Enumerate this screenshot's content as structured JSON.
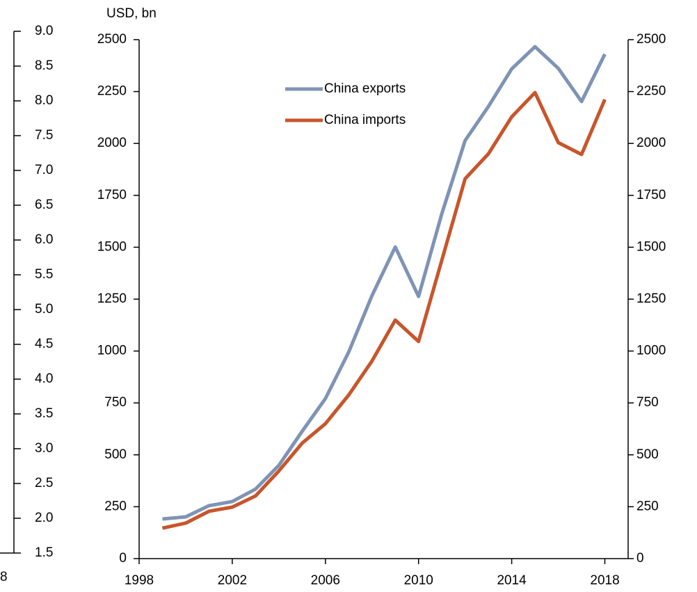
{
  "chart_data": [
    {
      "type": "line",
      "y_label": "USD, bn",
      "x": [
        1999,
        2000,
        2001,
        2002,
        2003,
        2004,
        2005,
        2006,
        2007,
        2008,
        2009,
        2010,
        2011,
        2012,
        2013,
        2014,
        2015,
        2016,
        2017,
        2018
      ],
      "series": [
        {
          "name": "China exports",
          "color": "#7f93b5",
          "values": [
            191,
            201,
            255,
            275,
            335,
            449,
            613,
            771,
            995,
            1267,
            1501,
            1263,
            1662,
            2014,
            2178,
            2359,
            2466,
            2362,
            2202,
            2430
          ]
        },
        {
          "name": "China imports",
          "color": "#c8552b",
          "values": [
            147,
            171,
            228,
            248,
            302,
            422,
            556,
            650,
            788,
            952,
            1149,
            1046,
            1438,
            1830,
            1950,
            2128,
            2245,
            2004,
            1947,
            2212
          ]
        }
      ],
      "xlim": [
        1998,
        2019
      ],
      "xticks": [
        1998,
        2002,
        2006,
        2010,
        2014,
        2018
      ],
      "ylim": [
        0,
        2500
      ],
      "yticks": [
        0,
        250,
        500,
        750,
        1000,
        1250,
        1500,
        1750,
        2000,
        2250,
        2500
      ],
      "y2lim": [
        0,
        2500
      ],
      "y2ticks": [
        0,
        250,
        500,
        750,
        1000,
        1250,
        1500,
        1750,
        2000,
        2250,
        2500
      ],
      "grid": false,
      "legend": "top"
    },
    {
      "type": "axis",
      "ylim": [
        1.5,
        9
      ],
      "yticks": [
        {
          "value": 1.5,
          "label": "1.5"
        },
        {
          "value": 2,
          "label": "2.0"
        },
        {
          "value": 2.5,
          "label": "2.5"
        },
        {
          "value": 3,
          "label": "3.0"
        },
        {
          "value": 3.5,
          "label": "3.5"
        },
        {
          "value": 4,
          "label": "4.0"
        },
        {
          "value": 4.5,
          "label": "4.5"
        },
        {
          "value": 5,
          "label": "5.0"
        },
        {
          "value": 5.5,
          "label": "5.5"
        },
        {
          "value": 6,
          "label": "6.0"
        },
        {
          "value": 6.5,
          "label": "6.5"
        },
        {
          "value": 7,
          "label": "7.0"
        },
        {
          "value": 7.5,
          "label": "7.5"
        },
        {
          "value": 8,
          "label": "8.0"
        },
        {
          "value": 8.5,
          "label": "8.5"
        },
        {
          "value": 9,
          "label": "9.0"
        }
      ],
      "x_tick_label": "8"
    }
  ]
}
